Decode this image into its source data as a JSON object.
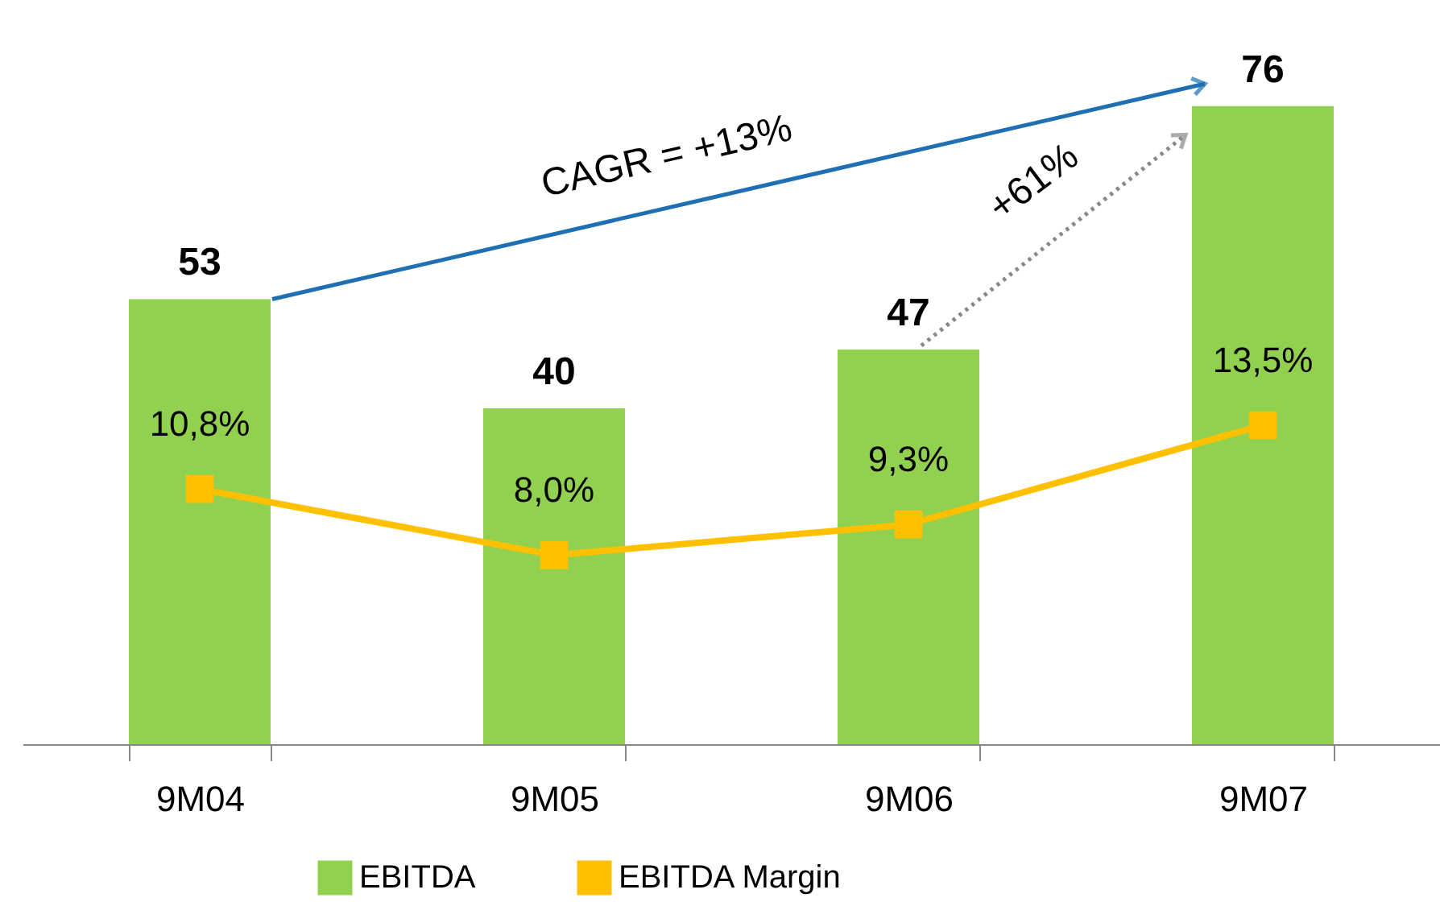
{
  "chart_data": {
    "type": "bar",
    "categories": [
      "9M04",
      "9M05",
      "9M06",
      "9M07"
    ],
    "series": [
      {
        "name": "EBITDA",
        "color": "#92d050",
        "values": [
          53,
          40,
          47,
          76
        ],
        "data_labels": true
      },
      {
        "name": "EBITDA Margin",
        "type": "line",
        "axis": "y2",
        "color": "#ffc000",
        "values": [
          10.8,
          8.0,
          9.3,
          13.5
        ],
        "value_labels": [
          "10,8%",
          "8,0%",
          "9,3%",
          "13,5%"
        ]
      }
    ],
    "tick_labels": "x",
    "legend": "bottom",
    "marker": "square",
    "line_style": "solid",
    "annotations": [
      "CAGR = +13%",
      "+61%"
    ]
  }
}
